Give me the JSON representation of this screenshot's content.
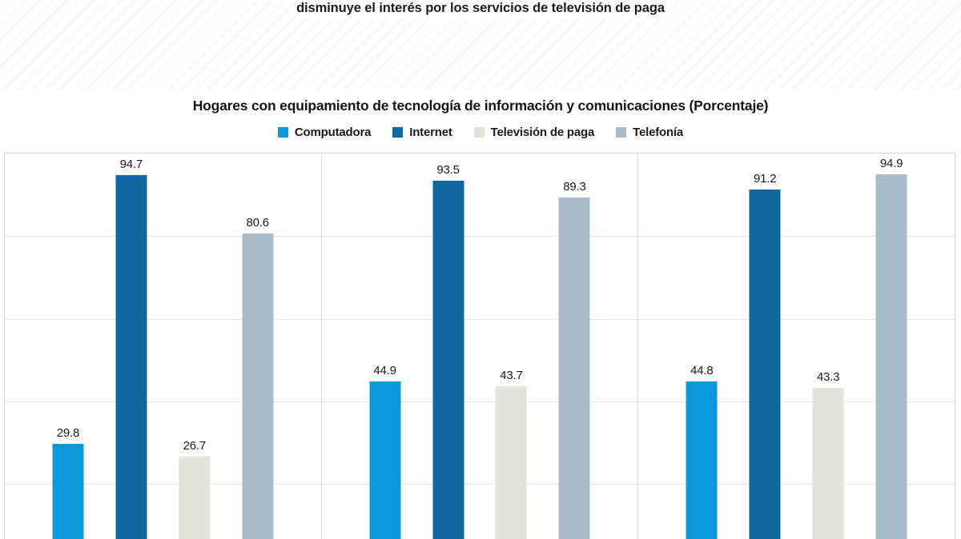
{
  "page": {
    "headline": "disminuye el interés por los servicios de televisión de paga"
  },
  "chart_data": {
    "type": "bar",
    "title": "Hogares con equipamiento de tecnología de información y comunicaciones (Porcentaje)",
    "categories": [
      "",
      "",
      ""
    ],
    "series": [
      {
        "name": "Computadora",
        "color": "#0d98dc",
        "values": [
          29.8,
          44.9,
          44.8
        ]
      },
      {
        "name": "Internet",
        "color": "#10689f",
        "values": [
          94.7,
          93.5,
          91.2
        ]
      },
      {
        "name": "Televisión de paga",
        "color": "#e2e3db",
        "values": [
          26.7,
          43.7,
          43.3
        ]
      },
      {
        "name": "Telefonía",
        "color": "#a7bbca",
        "values": [
          80.6,
          89.3,
          94.9
        ]
      }
    ],
    "ylim": [
      0,
      100
    ],
    "gridlines": [
      20,
      40,
      60,
      80
    ],
    "grid": true,
    "legend_position": "top",
    "value_labels": true,
    "xlabel": "",
    "ylabel": "",
    "layout_note_colors": {
      "grid": "#e4e4e4",
      "plot_border": "#d2d2d2",
      "label_text": "#191919"
    }
  }
}
